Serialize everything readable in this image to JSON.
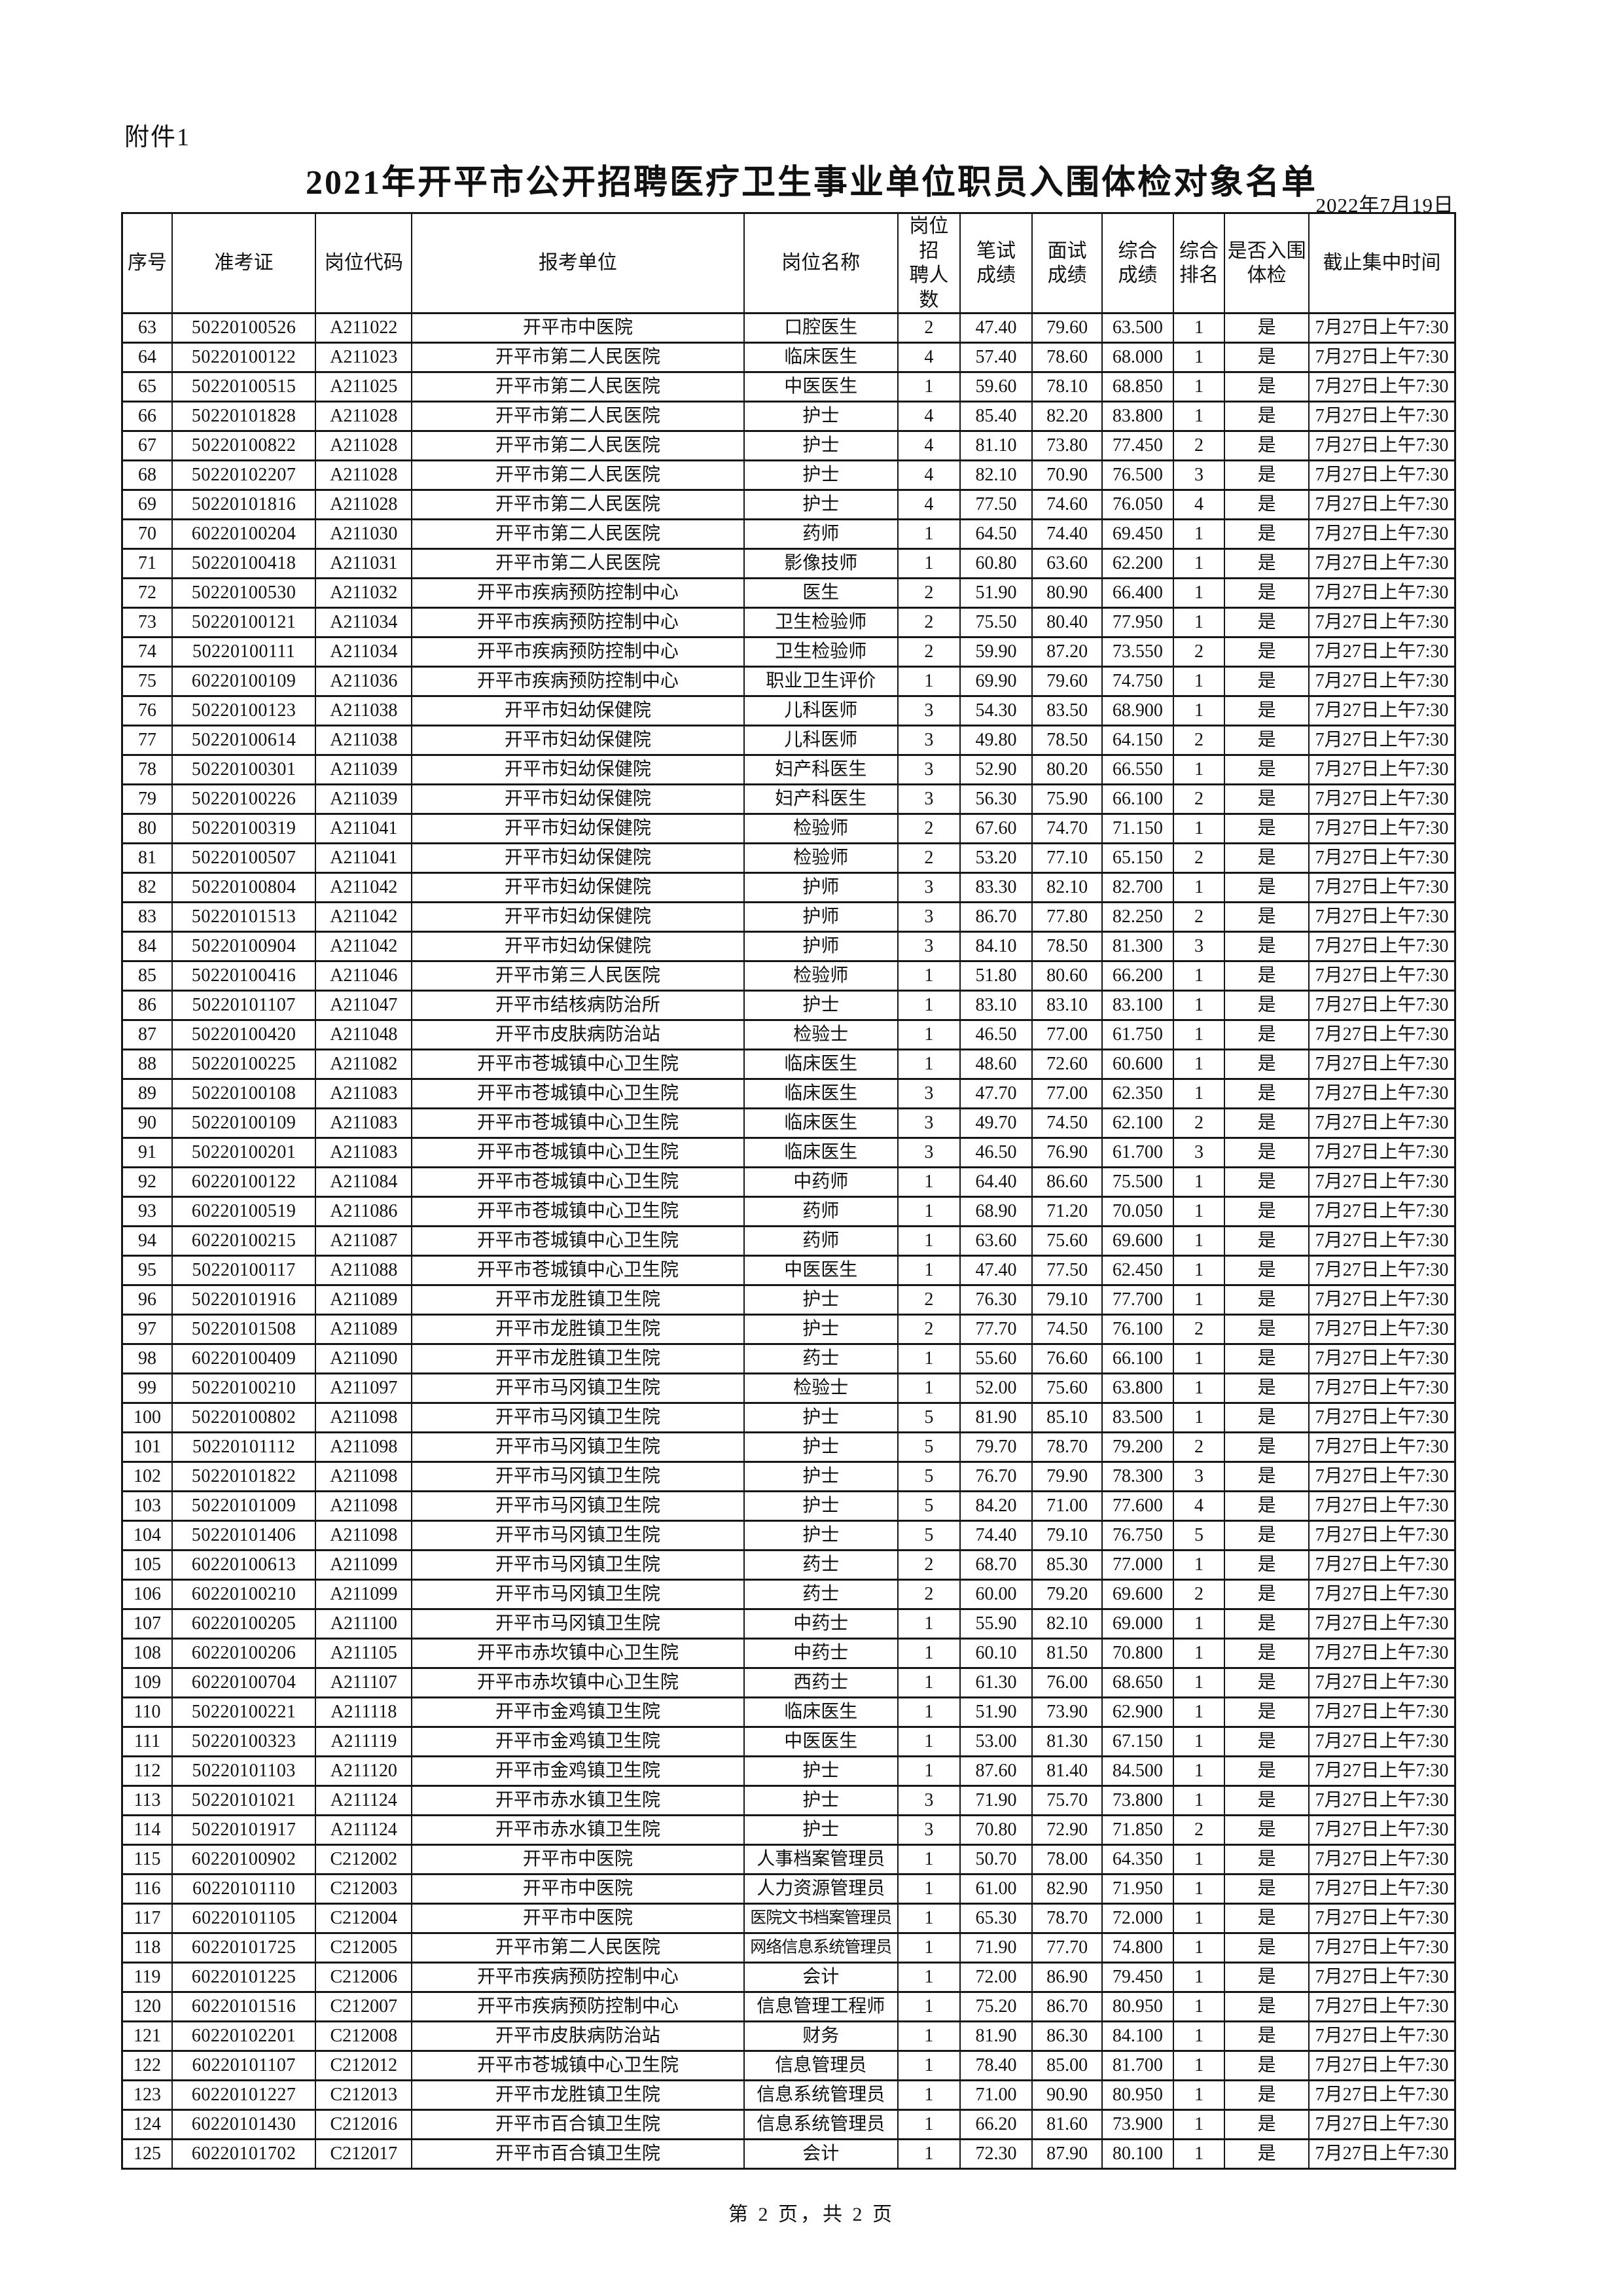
{
  "page": {
    "attachment_label": "附件1",
    "title": "2021年开平市公开招聘医疗卫生事业单位职员入围体检对象名单",
    "date": "2022年7月19日",
    "footer": "第 2 页，共 2 页"
  },
  "table": {
    "headers": [
      "序号",
      "准考证",
      "岗位代码",
      "报考单位",
      "岗位名称",
      "岗位招\n聘人数",
      "笔试\n成绩",
      "面试\n成绩",
      "综合\n成绩",
      "综合\n排名",
      "是否入围\n体检",
      "截止集中时间"
    ],
    "col_widths_pct": [
      3.8,
      10.9,
      7.3,
      25.2,
      11.7,
      4.7,
      5.5,
      5.3,
      5.4,
      3.9,
      6.4,
      11.1
    ],
    "rows": [
      [
        "63",
        "50220100526",
        "A211022",
        "开平市中医院",
        "口腔医生",
        "2",
        "47.40",
        "79.60",
        "63.500",
        "1",
        "是",
        "7月27日上午7:30"
      ],
      [
        "64",
        "50220100122",
        "A211023",
        "开平市第二人民医院",
        "临床医生",
        "4",
        "57.40",
        "78.60",
        "68.000",
        "1",
        "是",
        "7月27日上午7:30"
      ],
      [
        "65",
        "50220100515",
        "A211025",
        "开平市第二人民医院",
        "中医医生",
        "1",
        "59.60",
        "78.10",
        "68.850",
        "1",
        "是",
        "7月27日上午7:30"
      ],
      [
        "66",
        "50220101828",
        "A211028",
        "开平市第二人民医院",
        "护士",
        "4",
        "85.40",
        "82.20",
        "83.800",
        "1",
        "是",
        "7月27日上午7:30"
      ],
      [
        "67",
        "50220100822",
        "A211028",
        "开平市第二人民医院",
        "护士",
        "4",
        "81.10",
        "73.80",
        "77.450",
        "2",
        "是",
        "7月27日上午7:30"
      ],
      [
        "68",
        "50220102207",
        "A211028",
        "开平市第二人民医院",
        "护士",
        "4",
        "82.10",
        "70.90",
        "76.500",
        "3",
        "是",
        "7月27日上午7:30"
      ],
      [
        "69",
        "50220101816",
        "A211028",
        "开平市第二人民医院",
        "护士",
        "4",
        "77.50",
        "74.60",
        "76.050",
        "4",
        "是",
        "7月27日上午7:30"
      ],
      [
        "70",
        "60220100204",
        "A211030",
        "开平市第二人民医院",
        "药师",
        "1",
        "64.50",
        "74.40",
        "69.450",
        "1",
        "是",
        "7月27日上午7:30"
      ],
      [
        "71",
        "50220100418",
        "A211031",
        "开平市第二人民医院",
        "影像技师",
        "1",
        "60.80",
        "63.60",
        "62.200",
        "1",
        "是",
        "7月27日上午7:30"
      ],
      [
        "72",
        "50220100530",
        "A211032",
        "开平市疾病预防控制中心",
        "医生",
        "2",
        "51.90",
        "80.90",
        "66.400",
        "1",
        "是",
        "7月27日上午7:30"
      ],
      [
        "73",
        "50220100121",
        "A211034",
        "开平市疾病预防控制中心",
        "卫生检验师",
        "2",
        "75.50",
        "80.40",
        "77.950",
        "1",
        "是",
        "7月27日上午7:30"
      ],
      [
        "74",
        "50220100111",
        "A211034",
        "开平市疾病预防控制中心",
        "卫生检验师",
        "2",
        "59.90",
        "87.20",
        "73.550",
        "2",
        "是",
        "7月27日上午7:30"
      ],
      [
        "75",
        "60220100109",
        "A211036",
        "开平市疾病预防控制中心",
        "职业卫生评价",
        "1",
        "69.90",
        "79.60",
        "74.750",
        "1",
        "是",
        "7月27日上午7:30"
      ],
      [
        "76",
        "50220100123",
        "A211038",
        "开平市妇幼保健院",
        "儿科医师",
        "3",
        "54.30",
        "83.50",
        "68.900",
        "1",
        "是",
        "7月27日上午7:30"
      ],
      [
        "77",
        "50220100614",
        "A211038",
        "开平市妇幼保健院",
        "儿科医师",
        "3",
        "49.80",
        "78.50",
        "64.150",
        "2",
        "是",
        "7月27日上午7:30"
      ],
      [
        "78",
        "50220100301",
        "A211039",
        "开平市妇幼保健院",
        "妇产科医生",
        "3",
        "52.90",
        "80.20",
        "66.550",
        "1",
        "是",
        "7月27日上午7:30"
      ],
      [
        "79",
        "50220100226",
        "A211039",
        "开平市妇幼保健院",
        "妇产科医生",
        "3",
        "56.30",
        "75.90",
        "66.100",
        "2",
        "是",
        "7月27日上午7:30"
      ],
      [
        "80",
        "50220100319",
        "A211041",
        "开平市妇幼保健院",
        "检验师",
        "2",
        "67.60",
        "74.70",
        "71.150",
        "1",
        "是",
        "7月27日上午7:30"
      ],
      [
        "81",
        "50220100507",
        "A211041",
        "开平市妇幼保健院",
        "检验师",
        "2",
        "53.20",
        "77.10",
        "65.150",
        "2",
        "是",
        "7月27日上午7:30"
      ],
      [
        "82",
        "50220100804",
        "A211042",
        "开平市妇幼保健院",
        "护师",
        "3",
        "83.30",
        "82.10",
        "82.700",
        "1",
        "是",
        "7月27日上午7:30"
      ],
      [
        "83",
        "50220101513",
        "A211042",
        "开平市妇幼保健院",
        "护师",
        "3",
        "86.70",
        "77.80",
        "82.250",
        "2",
        "是",
        "7月27日上午7:30"
      ],
      [
        "84",
        "50220100904",
        "A211042",
        "开平市妇幼保健院",
        "护师",
        "3",
        "84.10",
        "78.50",
        "81.300",
        "3",
        "是",
        "7月27日上午7:30"
      ],
      [
        "85",
        "50220100416",
        "A211046",
        "开平市第三人民医院",
        "检验师",
        "1",
        "51.80",
        "80.60",
        "66.200",
        "1",
        "是",
        "7月27日上午7:30"
      ],
      [
        "86",
        "50220101107",
        "A211047",
        "开平市结核病防治所",
        "护士",
        "1",
        "83.10",
        "83.10",
        "83.100",
        "1",
        "是",
        "7月27日上午7:30"
      ],
      [
        "87",
        "50220100420",
        "A211048",
        "开平市皮肤病防治站",
        "检验士",
        "1",
        "46.50",
        "77.00",
        "61.750",
        "1",
        "是",
        "7月27日上午7:30"
      ],
      [
        "88",
        "50220100225",
        "A211082",
        "开平市苍城镇中心卫生院",
        "临床医生",
        "1",
        "48.60",
        "72.60",
        "60.600",
        "1",
        "是",
        "7月27日上午7:30"
      ],
      [
        "89",
        "50220100108",
        "A211083",
        "开平市苍城镇中心卫生院",
        "临床医生",
        "3",
        "47.70",
        "77.00",
        "62.350",
        "1",
        "是",
        "7月27日上午7:30"
      ],
      [
        "90",
        "50220100109",
        "A211083",
        "开平市苍城镇中心卫生院",
        "临床医生",
        "3",
        "49.70",
        "74.50",
        "62.100",
        "2",
        "是",
        "7月27日上午7:30"
      ],
      [
        "91",
        "50220100201",
        "A211083",
        "开平市苍城镇中心卫生院",
        "临床医生",
        "3",
        "46.50",
        "76.90",
        "61.700",
        "3",
        "是",
        "7月27日上午7:30"
      ],
      [
        "92",
        "60220100122",
        "A211084",
        "开平市苍城镇中心卫生院",
        "中药师",
        "1",
        "64.40",
        "86.60",
        "75.500",
        "1",
        "是",
        "7月27日上午7:30"
      ],
      [
        "93",
        "60220100519",
        "A211086",
        "开平市苍城镇中心卫生院",
        "药师",
        "1",
        "68.90",
        "71.20",
        "70.050",
        "1",
        "是",
        "7月27日上午7:30"
      ],
      [
        "94",
        "60220100215",
        "A211087",
        "开平市苍城镇中心卫生院",
        "药师",
        "1",
        "63.60",
        "75.60",
        "69.600",
        "1",
        "是",
        "7月27日上午7:30"
      ],
      [
        "95",
        "50220100117",
        "A211088",
        "开平市苍城镇中心卫生院",
        "中医医生",
        "1",
        "47.40",
        "77.50",
        "62.450",
        "1",
        "是",
        "7月27日上午7:30"
      ],
      [
        "96",
        "50220101916",
        "A211089",
        "开平市龙胜镇卫生院",
        "护士",
        "2",
        "76.30",
        "79.10",
        "77.700",
        "1",
        "是",
        "7月27日上午7:30"
      ],
      [
        "97",
        "50220101508",
        "A211089",
        "开平市龙胜镇卫生院",
        "护士",
        "2",
        "77.70",
        "74.50",
        "76.100",
        "2",
        "是",
        "7月27日上午7:30"
      ],
      [
        "98",
        "60220100409",
        "A211090",
        "开平市龙胜镇卫生院",
        "药士",
        "1",
        "55.60",
        "76.60",
        "66.100",
        "1",
        "是",
        "7月27日上午7:30"
      ],
      [
        "99",
        "50220100210",
        "A211097",
        "开平市马冈镇卫生院",
        "检验士",
        "1",
        "52.00",
        "75.60",
        "63.800",
        "1",
        "是",
        "7月27日上午7:30"
      ],
      [
        "100",
        "50220100802",
        "A211098",
        "开平市马冈镇卫生院",
        "护士",
        "5",
        "81.90",
        "85.10",
        "83.500",
        "1",
        "是",
        "7月27日上午7:30"
      ],
      [
        "101",
        "50220101112",
        "A211098",
        "开平市马冈镇卫生院",
        "护士",
        "5",
        "79.70",
        "78.70",
        "79.200",
        "2",
        "是",
        "7月27日上午7:30"
      ],
      [
        "102",
        "50220101822",
        "A211098",
        "开平市马冈镇卫生院",
        "护士",
        "5",
        "76.70",
        "79.90",
        "78.300",
        "3",
        "是",
        "7月27日上午7:30"
      ],
      [
        "103",
        "50220101009",
        "A211098",
        "开平市马冈镇卫生院",
        "护士",
        "5",
        "84.20",
        "71.00",
        "77.600",
        "4",
        "是",
        "7月27日上午7:30"
      ],
      [
        "104",
        "50220101406",
        "A211098",
        "开平市马冈镇卫生院",
        "护士",
        "5",
        "74.40",
        "79.10",
        "76.750",
        "5",
        "是",
        "7月27日上午7:30"
      ],
      [
        "105",
        "60220100613",
        "A211099",
        "开平市马冈镇卫生院",
        "药士",
        "2",
        "68.70",
        "85.30",
        "77.000",
        "1",
        "是",
        "7月27日上午7:30"
      ],
      [
        "106",
        "60220100210",
        "A211099",
        "开平市马冈镇卫生院",
        "药士",
        "2",
        "60.00",
        "79.20",
        "69.600",
        "2",
        "是",
        "7月27日上午7:30"
      ],
      [
        "107",
        "60220100205",
        "A211100",
        "开平市马冈镇卫生院",
        "中药士",
        "1",
        "55.90",
        "82.10",
        "69.000",
        "1",
        "是",
        "7月27日上午7:30"
      ],
      [
        "108",
        "60220100206",
        "A211105",
        "开平市赤坎镇中心卫生院",
        "中药士",
        "1",
        "60.10",
        "81.50",
        "70.800",
        "1",
        "是",
        "7月27日上午7:30"
      ],
      [
        "109",
        "60220100704",
        "A211107",
        "开平市赤坎镇中心卫生院",
        "西药士",
        "1",
        "61.30",
        "76.00",
        "68.650",
        "1",
        "是",
        "7月27日上午7:30"
      ],
      [
        "110",
        "50220100221",
        "A211118",
        "开平市金鸡镇卫生院",
        "临床医生",
        "1",
        "51.90",
        "73.90",
        "62.900",
        "1",
        "是",
        "7月27日上午7:30"
      ],
      [
        "111",
        "50220100323",
        "A211119",
        "开平市金鸡镇卫生院",
        "中医医生",
        "1",
        "53.00",
        "81.30",
        "67.150",
        "1",
        "是",
        "7月27日上午7:30"
      ],
      [
        "112",
        "50220101103",
        "A211120",
        "开平市金鸡镇卫生院",
        "护士",
        "1",
        "87.60",
        "81.40",
        "84.500",
        "1",
        "是",
        "7月27日上午7:30"
      ],
      [
        "113",
        "50220101021",
        "A211124",
        "开平市赤水镇卫生院",
        "护士",
        "3",
        "71.90",
        "75.70",
        "73.800",
        "1",
        "是",
        "7月27日上午7:30"
      ],
      [
        "114",
        "50220101917",
        "A211124",
        "开平市赤水镇卫生院",
        "护士",
        "3",
        "70.80",
        "72.90",
        "71.850",
        "2",
        "是",
        "7月27日上午7:30"
      ],
      [
        "115",
        "60220100902",
        "C212002",
        "开平市中医院",
        "人事档案管理员",
        "1",
        "50.70",
        "78.00",
        "64.350",
        "1",
        "是",
        "7月27日上午7:30"
      ],
      [
        "116",
        "60220101110",
        "C212003",
        "开平市中医院",
        "人力资源管理员",
        "1",
        "61.00",
        "82.90",
        "71.950",
        "1",
        "是",
        "7月27日上午7:30"
      ],
      [
        "117",
        "60220101105",
        "C212004",
        "开平市中医院",
        "医院文书档案管理员",
        "1",
        "65.30",
        "78.70",
        "72.000",
        "1",
        "是",
        "7月27日上午7:30"
      ],
      [
        "118",
        "60220101725",
        "C212005",
        "开平市第二人民医院",
        "网络信息系统管理员",
        "1",
        "71.90",
        "77.70",
        "74.800",
        "1",
        "是",
        "7月27日上午7:30"
      ],
      [
        "119",
        "60220101225",
        "C212006",
        "开平市疾病预防控制中心",
        "会计",
        "1",
        "72.00",
        "86.90",
        "79.450",
        "1",
        "是",
        "7月27日上午7:30"
      ],
      [
        "120",
        "60220101516",
        "C212007",
        "开平市疾病预防控制中心",
        "信息管理工程师",
        "1",
        "75.20",
        "86.70",
        "80.950",
        "1",
        "是",
        "7月27日上午7:30"
      ],
      [
        "121",
        "60220102201",
        "C212008",
        "开平市皮肤病防治站",
        "财务",
        "1",
        "81.90",
        "86.30",
        "84.100",
        "1",
        "是",
        "7月27日上午7:30"
      ],
      [
        "122",
        "60220101107",
        "C212012",
        "开平市苍城镇中心卫生院",
        "信息管理员",
        "1",
        "78.40",
        "85.00",
        "81.700",
        "1",
        "是",
        "7月27日上午7:30"
      ],
      [
        "123",
        "60220101227",
        "C212013",
        "开平市龙胜镇卫生院",
        "信息系统管理员",
        "1",
        "71.00",
        "90.90",
        "80.950",
        "1",
        "是",
        "7月27日上午7:30"
      ],
      [
        "124",
        "60220101430",
        "C212016",
        "开平市百合镇卫生院",
        "信息系统管理员",
        "1",
        "66.20",
        "81.60",
        "73.900",
        "1",
        "是",
        "7月27日上午7:30"
      ],
      [
        "125",
        "60220101702",
        "C212017",
        "开平市百合镇卫生院",
        "会计",
        "1",
        "72.30",
        "87.90",
        "80.100",
        "1",
        "是",
        "7月27日上午7:30"
      ]
    ]
  }
}
